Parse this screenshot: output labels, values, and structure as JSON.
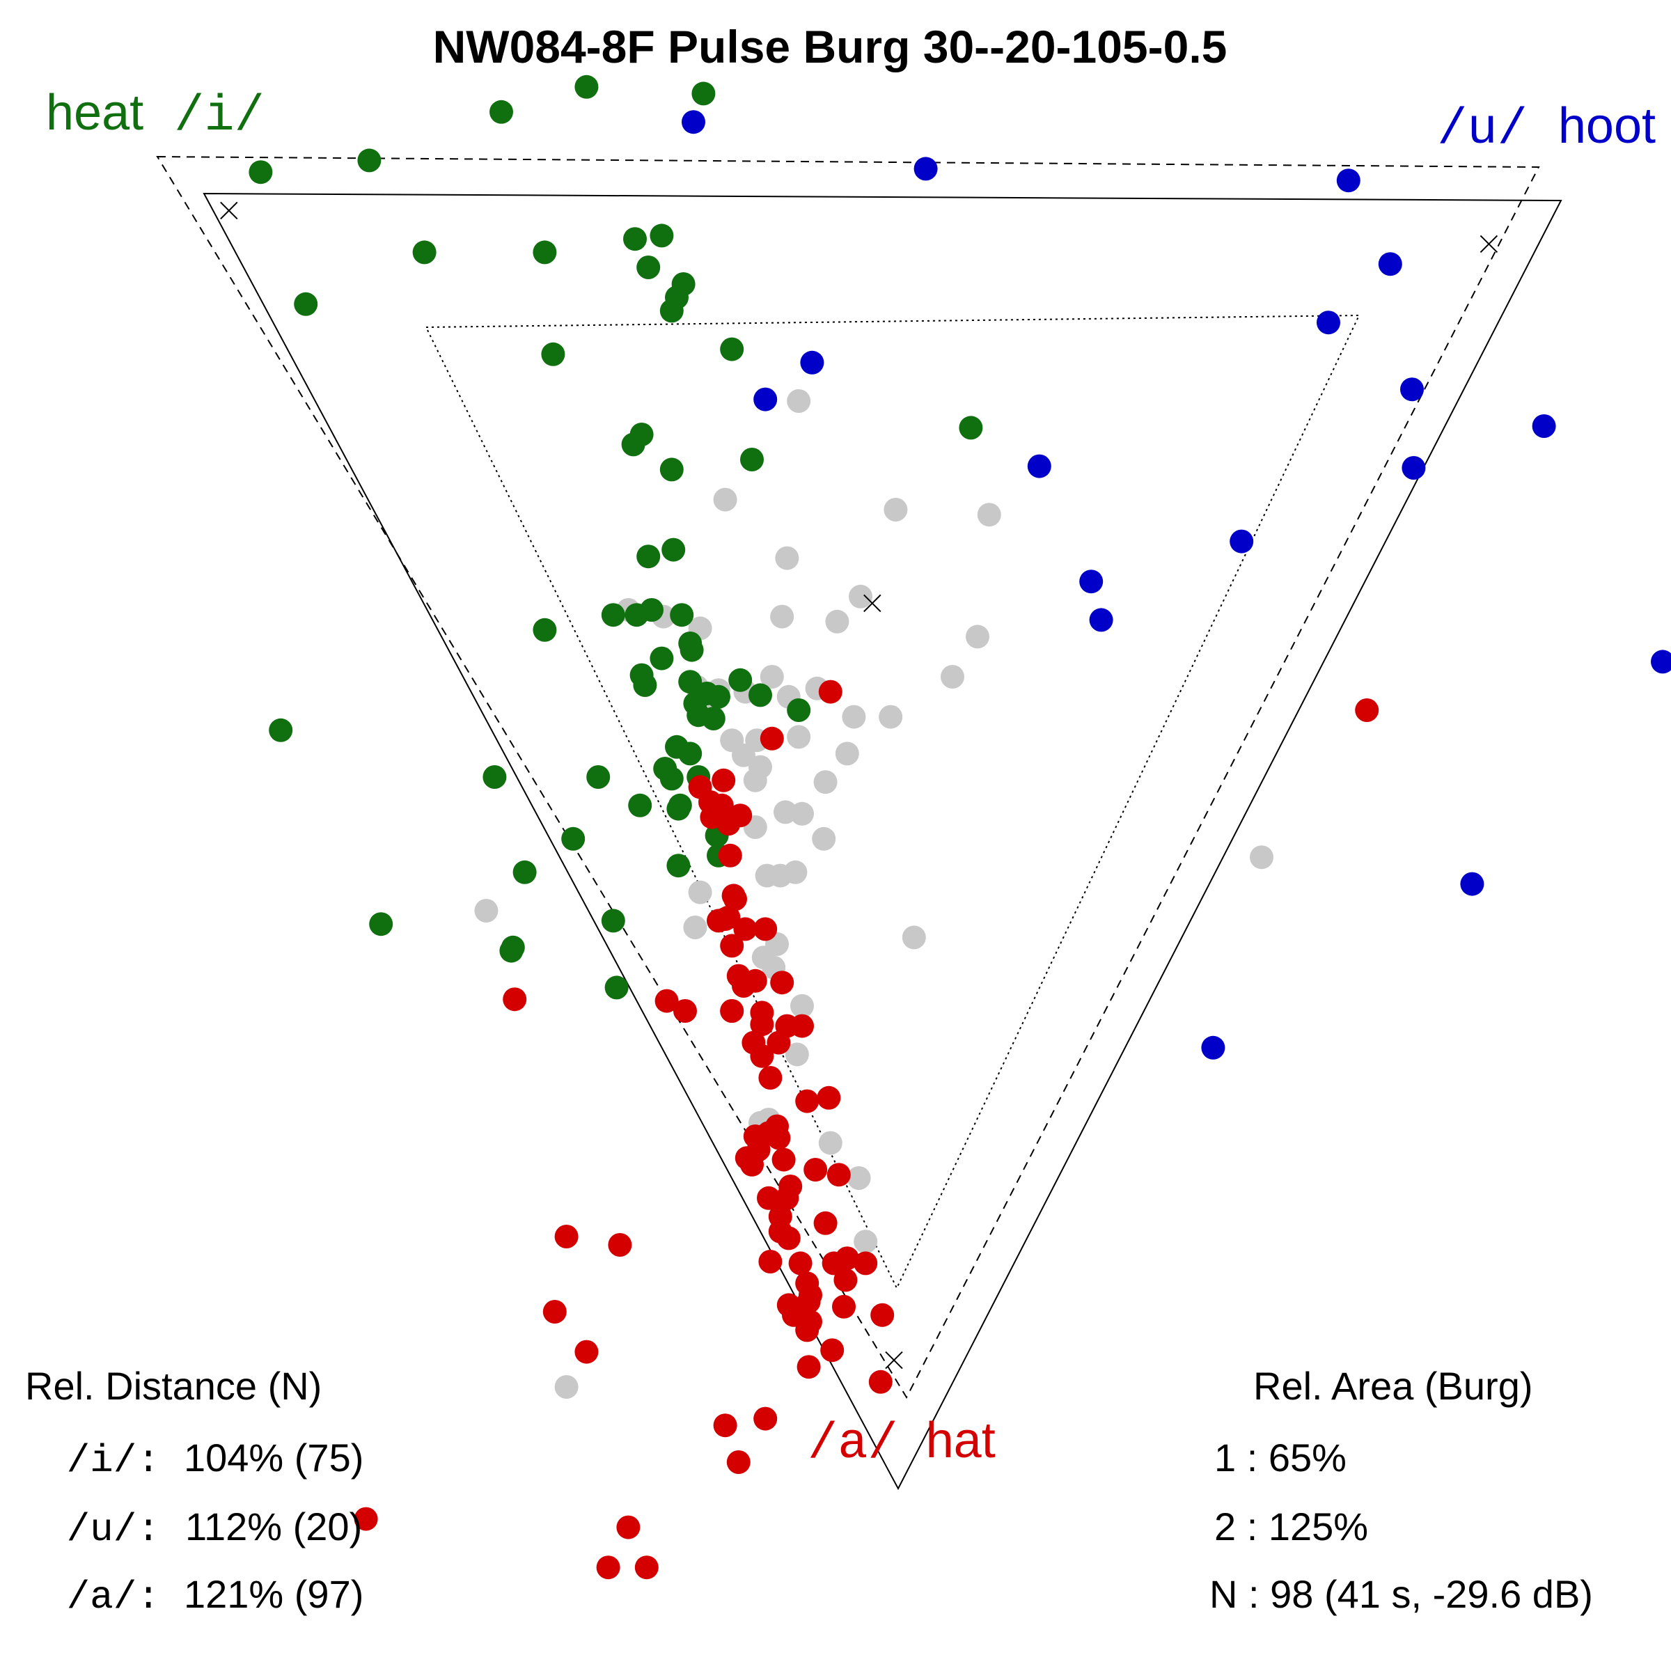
{
  "chart_data": {
    "type": "scatter",
    "title": "NW084-8F Pulse Burg 30--20-105-0.5",
    "corner_labels": {
      "i": {
        "symbol": "/i/",
        "word": "heat"
      },
      "u": {
        "symbol": "/u/",
        "word": "hoot"
      },
      "a": {
        "symbol": "/a/",
        "word": "hat"
      }
    },
    "reference_triangles": [
      "solid",
      "dashed",
      "dotted"
    ],
    "colors": {
      "i": "#107010",
      "u": "#0000c8",
      "a": "#d40000",
      "n": "#c8c8c8",
      "ink": "#000000"
    },
    "series": [
      {
        "name": "/i/",
        "color_key": "i",
        "points": [
          [
            0.156,
            0.103
          ],
          [
            0.221,
            0.096
          ],
          [
            0.3,
            0.067
          ],
          [
            0.351,
            0.052
          ],
          [
            0.421,
            0.056
          ],
          [
            0.183,
            0.182
          ],
          [
            0.254,
            0.151
          ],
          [
            0.326,
            0.151
          ],
          [
            0.38,
            0.143
          ],
          [
            0.396,
            0.141
          ],
          [
            0.388,
            0.16
          ],
          [
            0.409,
            0.17
          ],
          [
            0.405,
            0.178
          ],
          [
            0.402,
            0.186
          ],
          [
            0.331,
            0.212
          ],
          [
            0.438,
            0.209
          ],
          [
            0.384,
            0.26
          ],
          [
            0.379,
            0.266
          ],
          [
            0.402,
            0.281
          ],
          [
            0.45,
            0.275
          ],
          [
            0.581,
            0.256
          ],
          [
            0.403,
            0.329
          ],
          [
            0.388,
            0.333
          ],
          [
            0.367,
            0.368
          ],
          [
            0.381,
            0.368
          ],
          [
            0.39,
            0.365
          ],
          [
            0.408,
            0.368
          ],
          [
            0.326,
            0.377
          ],
          [
            0.413,
            0.385
          ],
          [
            0.414,
            0.389
          ],
          [
            0.396,
            0.394
          ],
          [
            0.384,
            0.404
          ],
          [
            0.386,
            0.41
          ],
          [
            0.413,
            0.408
          ],
          [
            0.423,
            0.415
          ],
          [
            0.43,
            0.417
          ],
          [
            0.416,
            0.421
          ],
          [
            0.443,
            0.407
          ],
          [
            0.455,
            0.416
          ],
          [
            0.478,
            0.425
          ],
          [
            0.418,
            0.428
          ],
          [
            0.427,
            0.43
          ],
          [
            0.405,
            0.447
          ],
          [
            0.413,
            0.451
          ],
          [
            0.398,
            0.46
          ],
          [
            0.402,
            0.466
          ],
          [
            0.418,
            0.465
          ],
          [
            0.407,
            0.482
          ],
          [
            0.383,
            0.482
          ],
          [
            0.358,
            0.465
          ],
          [
            0.406,
            0.484
          ],
          [
            0.429,
            0.5
          ],
          [
            0.43,
            0.512
          ],
          [
            0.406,
            0.518
          ],
          [
            0.343,
            0.502
          ],
          [
            0.314,
            0.522
          ],
          [
            0.296,
            0.465
          ],
          [
            0.168,
            0.437
          ],
          [
            0.228,
            0.553
          ],
          [
            0.307,
            0.567
          ],
          [
            0.367,
            0.551
          ],
          [
            0.369,
            0.591
          ],
          [
            0.306,
            0.569
          ]
        ]
      },
      {
        "name": "/u/",
        "color_key": "u",
        "points": [
          [
            0.415,
            0.073
          ],
          [
            0.554,
            0.101
          ],
          [
            0.807,
            0.108
          ],
          [
            0.832,
            0.158
          ],
          [
            0.795,
            0.193
          ],
          [
            0.845,
            0.233
          ],
          [
            0.924,
            0.255
          ],
          [
            0.846,
            0.28
          ],
          [
            0.486,
            0.217
          ],
          [
            0.458,
            0.239
          ],
          [
            0.622,
            0.279
          ],
          [
            0.743,
            0.324
          ],
          [
            0.653,
            0.348
          ],
          [
            0.659,
            0.371
          ],
          [
            0.995,
            0.396
          ],
          [
            0.881,
            0.529
          ],
          [
            0.726,
            0.627
          ]
        ]
      },
      {
        "name": "/a/",
        "color_key": "a",
        "points": [
          [
            0.497,
            0.414
          ],
          [
            0.462,
            0.442
          ],
          [
            0.433,
            0.467
          ],
          [
            0.419,
            0.471
          ],
          [
            0.425,
            0.48
          ],
          [
            0.432,
            0.482
          ],
          [
            0.426,
            0.489
          ],
          [
            0.443,
            0.488
          ],
          [
            0.436,
            0.493
          ],
          [
            0.437,
            0.512
          ],
          [
            0.439,
            0.536
          ],
          [
            0.44,
            0.538
          ],
          [
            0.436,
            0.549
          ],
          [
            0.434,
            0.55
          ],
          [
            0.446,
            0.556
          ],
          [
            0.43,
            0.551
          ],
          [
            0.438,
            0.566
          ],
          [
            0.458,
            0.556
          ],
          [
            0.442,
            0.584
          ],
          [
            0.452,
            0.587
          ],
          [
            0.468,
            0.588
          ],
          [
            0.445,
            0.59
          ],
          [
            0.456,
            0.606
          ],
          [
            0.456,
            0.613
          ],
          [
            0.471,
            0.614
          ],
          [
            0.48,
            0.614
          ],
          [
            0.466,
            0.624
          ],
          [
            0.451,
            0.624
          ],
          [
            0.456,
            0.632
          ],
          [
            0.461,
            0.645
          ],
          [
            0.438,
            0.605
          ],
          [
            0.399,
            0.599
          ],
          [
            0.41,
            0.605
          ],
          [
            0.438,
            0.605
          ],
          [
            0.308,
            0.598
          ],
          [
            0.483,
            0.659
          ],
          [
            0.496,
            0.657
          ],
          [
            0.465,
            0.674
          ],
          [
            0.452,
            0.68
          ],
          [
            0.46,
            0.678
          ],
          [
            0.466,
            0.681
          ],
          [
            0.454,
            0.688
          ],
          [
            0.447,
            0.693
          ],
          [
            0.469,
            0.694
          ],
          [
            0.45,
            0.697
          ],
          [
            0.488,
            0.7
          ],
          [
            0.502,
            0.703
          ],
          [
            0.473,
            0.71
          ],
          [
            0.46,
            0.717
          ],
          [
            0.471,
            0.717
          ],
          [
            0.467,
            0.728
          ],
          [
            0.494,
            0.732
          ],
          [
            0.467,
            0.737
          ],
          [
            0.472,
            0.741
          ],
          [
            0.461,
            0.755
          ],
          [
            0.479,
            0.756
          ],
          [
            0.499,
            0.756
          ],
          [
            0.507,
            0.753
          ],
          [
            0.518,
            0.756
          ],
          [
            0.506,
            0.766
          ],
          [
            0.483,
            0.768
          ],
          [
            0.485,
            0.775
          ],
          [
            0.472,
            0.781
          ],
          [
            0.484,
            0.779
          ],
          [
            0.505,
            0.782
          ],
          [
            0.475,
            0.787
          ],
          [
            0.528,
            0.787
          ],
          [
            0.485,
            0.791
          ],
          [
            0.483,
            0.796
          ],
          [
            0.498,
            0.808
          ],
          [
            0.484,
            0.818
          ],
          [
            0.527,
            0.827
          ],
          [
            0.818,
            0.425
          ],
          [
            0.339,
            0.74
          ],
          [
            0.371,
            0.745
          ],
          [
            0.332,
            0.785
          ],
          [
            0.351,
            0.809
          ],
          [
            0.434,
            0.853
          ],
          [
            0.458,
            0.849
          ],
          [
            0.442,
            0.875
          ],
          [
            0.219,
            0.909
          ],
          [
            0.376,
            0.914
          ],
          [
            0.364,
            0.938
          ],
          [
            0.387,
            0.938
          ]
        ]
      },
      {
        "name": "N",
        "color_key": "n",
        "points": [
          [
            0.478,
            0.24
          ],
          [
            0.434,
            0.299
          ],
          [
            0.536,
            0.305
          ],
          [
            0.592,
            0.308
          ],
          [
            0.471,
            0.334
          ],
          [
            0.468,
            0.369
          ],
          [
            0.501,
            0.372
          ],
          [
            0.515,
            0.357
          ],
          [
            0.585,
            0.381
          ],
          [
            0.376,
            0.365
          ],
          [
            0.397,
            0.369
          ],
          [
            0.419,
            0.376
          ],
          [
            0.462,
            0.405
          ],
          [
            0.57,
            0.405
          ],
          [
            0.533,
            0.429
          ],
          [
            0.511,
            0.429
          ],
          [
            0.417,
            0.411
          ],
          [
            0.43,
            0.413
          ],
          [
            0.446,
            0.414
          ],
          [
            0.472,
            0.417
          ],
          [
            0.489,
            0.412
          ],
          [
            0.426,
            0.428
          ],
          [
            0.478,
            0.441
          ],
          [
            0.438,
            0.443
          ],
          [
            0.453,
            0.443
          ],
          [
            0.445,
            0.452
          ],
          [
            0.452,
            0.467
          ],
          [
            0.455,
            0.459
          ],
          [
            0.507,
            0.451
          ],
          [
            0.494,
            0.468
          ],
          [
            0.47,
            0.486
          ],
          [
            0.48,
            0.487
          ],
          [
            0.452,
            0.495
          ],
          [
            0.493,
            0.502
          ],
          [
            0.459,
            0.524
          ],
          [
            0.467,
            0.524
          ],
          [
            0.476,
            0.522
          ],
          [
            0.419,
            0.534
          ],
          [
            0.755,
            0.513
          ],
          [
            0.291,
            0.545
          ],
          [
            0.416,
            0.555
          ],
          [
            0.547,
            0.561
          ],
          [
            0.465,
            0.565
          ],
          [
            0.457,
            0.573
          ],
          [
            0.463,
            0.579
          ],
          [
            0.48,
            0.602
          ],
          [
            0.477,
            0.631
          ],
          [
            0.455,
            0.672
          ],
          [
            0.46,
            0.67
          ],
          [
            0.497,
            0.684
          ],
          [
            0.514,
            0.705
          ],
          [
            0.518,
            0.743
          ],
          [
            0.339,
            0.83
          ]
        ]
      }
    ],
    "markers": [
      [
        0.137,
        0.126
      ],
      [
        0.891,
        0.146
      ],
      [
        0.522,
        0.361
      ],
      [
        0.535,
        0.814
      ]
    ],
    "stats_left": {
      "title": "Rel. Distance (N)",
      "rows": [
        {
          "label": "/i/:",
          "value": "104% (75)"
        },
        {
          "label": "/u/:",
          "value": "112% (20)"
        },
        {
          "label": "/a/:",
          "value": "121% (97)"
        }
      ]
    },
    "stats_right": {
      "title": "Rel. Area (Burg)",
      "rows": [
        {
          "label": "1",
          "value": "65%"
        },
        {
          "label": "2",
          "value": "125%"
        },
        {
          "label": "N",
          "value": "98 (41 s, -29.6 dB)"
        }
      ]
    }
  }
}
